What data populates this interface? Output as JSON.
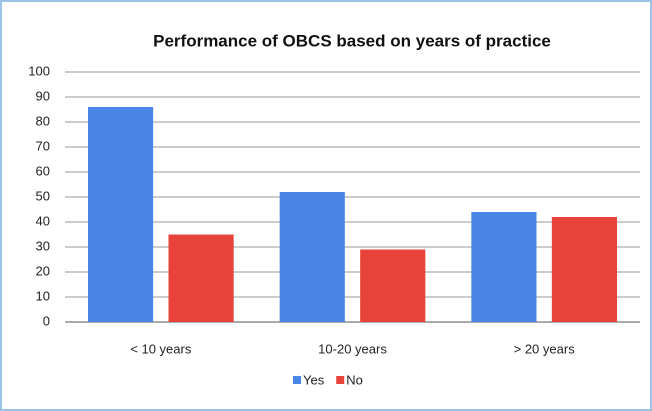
{
  "chart_data": {
    "type": "bar",
    "title": "Performance of OBCS based on years of practice",
    "categories": [
      "< 10 years",
      "10-20 years",
      "> 20 years"
    ],
    "series": [
      {
        "name": "Yes",
        "color": "#4a86e8",
        "values": [
          86,
          52,
          44
        ]
      },
      {
        "name": "No",
        "color": "#e8433a",
        "values": [
          35,
          29,
          42
        ]
      }
    ],
    "ylim": [
      0,
      100
    ],
    "yticks": [
      0,
      10,
      20,
      30,
      40,
      50,
      60,
      70,
      80,
      90,
      100
    ],
    "grid": true,
    "legend": "bottom"
  }
}
